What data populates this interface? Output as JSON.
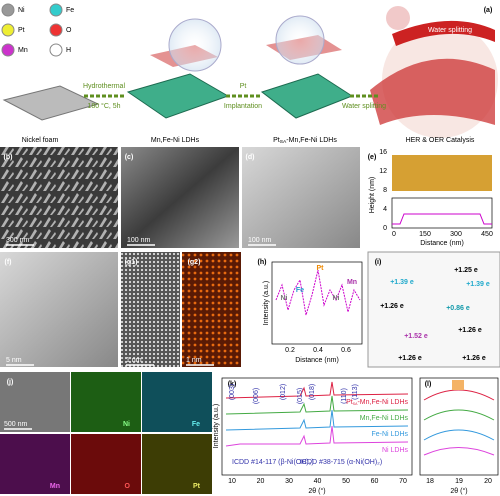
{
  "atoms": [
    "Ni",
    "Fe",
    "Pt",
    "O",
    "Mn",
    "H"
  ],
  "panel_labels": {
    "a": "(a)",
    "b": "(b)",
    "c": "(c)",
    "d": "(d)",
    "e": "(e)",
    "f": "(f)",
    "g1": "(g1)",
    "g2": "(g2)",
    "h": "(h)",
    "i": "(i)",
    "j": "(j)",
    "k": "(k)",
    "l": "(l)"
  },
  "schematic": {
    "step1": [
      "Hydrothermal",
      "180 °C, 5h"
    ],
    "step2": [
      "Pt",
      "Implantation"
    ],
    "step3": "Water splitting",
    "banner": "Water splitting",
    "captions": {
      "foam": "Nickel foam",
      "ldh": "Mn,Fe-Ni LDHs",
      "pt": {
        "main": "Pt",
        "sub": "SA",
        "rest": "-Mn,Fe-Ni LDHs"
      },
      "cat": "HER & OER Catalysis"
    }
  },
  "scale_bars": {
    "b": "300 nm",
    "c": "100 nm",
    "d": "100 nm",
    "f": "5 nm",
    "g1": "1 nm",
    "g2": "1 nm",
    "j": "500 nm"
  },
  "e": {
    "ylabel": "Height (nm)",
    "xlabel": "Distance (nm)",
    "yticks": [
      0,
      4,
      8,
      12,
      16
    ],
    "xticks": [
      0,
      150,
      300,
      450
    ]
  },
  "h": {
    "ylabel": "Intensity (a.u.)",
    "xlabel": "Distance (nm)",
    "xticks": [
      0.2,
      0.4,
      0.6
    ],
    "peaks": [
      "Pt",
      "Mn",
      "Fe",
      "Ni",
      "Ni"
    ]
  },
  "i": {
    "charges": [
      "+1.25 e",
      "+1.39 e",
      "+1.39 e",
      "+1.26 e",
      "+0.86 e",
      "+1.26 e",
      "+1.52 e",
      "+1.26 e",
      "+1.26 e"
    ]
  },
  "j": {
    "maps": [
      "Ni",
      "Fe",
      "Mn",
      "O",
      "Pt"
    ]
  },
  "k": {
    "ylabel": "Intensity (a.u.)",
    "xlabel": "2θ (°)",
    "xticks": [
      10,
      20,
      30,
      40,
      50,
      60,
      70
    ],
    "planes": [
      "(003)",
      "(006)",
      "(012)",
      "(015)",
      "(018)",
      "(110)",
      "(113)"
    ],
    "series": [
      {
        "main": "Pt",
        "sub": "SA",
        "rest": "-Mn,Fe-Ni LDHs"
      },
      "Mn,Fe-Ni LDHs",
      "Fe-Ni LDHs",
      "Ni LDHs"
    ],
    "refs": [
      "ICDD #14-117 (β-Ni(OH)₂)",
      "ICDD #38-715 (α-Ni(OH)₂)"
    ]
  },
  "l": {
    "xlabel": "2θ (°)",
    "xticks": [
      18,
      19,
      20
    ]
  }
}
